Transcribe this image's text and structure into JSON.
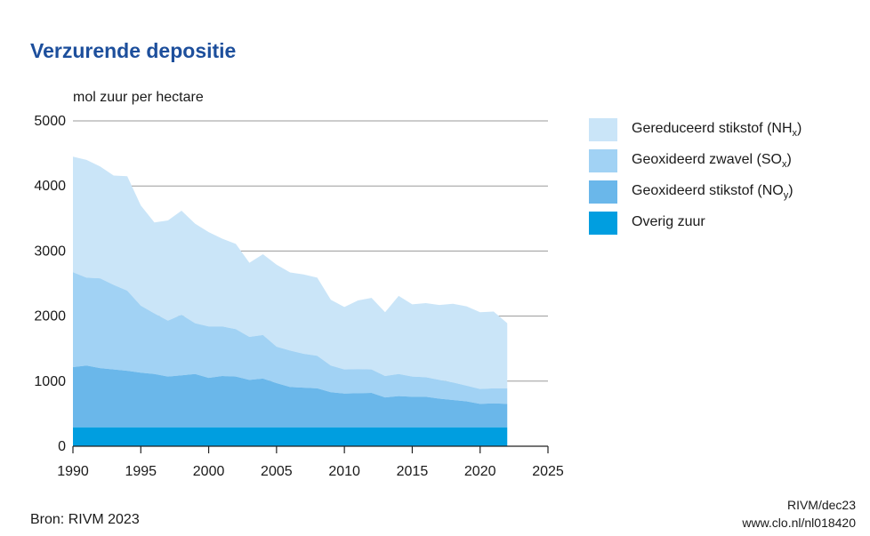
{
  "title": "Verzurende depositie",
  "source": "Bron: RIVM 2023",
  "credit_line1": "RIVM/dec23",
  "credit_line2": "www.clo.nl/nl018420",
  "chart_data": {
    "type": "area",
    "stacked": true,
    "title": "Verzurende depositie",
    "ylabel": "mol zuur per hectare",
    "xlabel": "",
    "xlim": [
      1990,
      2025
    ],
    "ylim": [
      0,
      5000
    ],
    "xticks": [
      1990,
      1995,
      2000,
      2005,
      2010,
      2015,
      2020,
      2025
    ],
    "yticks": [
      0,
      1000,
      2000,
      3000,
      4000,
      5000
    ],
    "grid": true,
    "legend_position": "right",
    "x": [
      1990,
      1991,
      1992,
      1993,
      1994,
      1995,
      1996,
      1997,
      1998,
      1999,
      2000,
      2001,
      2002,
      2003,
      2004,
      2005,
      2006,
      2007,
      2008,
      2009,
      2010,
      2011,
      2012,
      2013,
      2014,
      2015,
      2016,
      2017,
      2018,
      2019,
      2020,
      2021,
      2022
    ],
    "series": [
      {
        "name": "Overig zuur",
        "legend_label": "Overig zuur",
        "color": "#009ee0",
        "values": [
          290,
          290,
          290,
          290,
          290,
          290,
          290,
          290,
          290,
          290,
          290,
          290,
          290,
          290,
          290,
          290,
          290,
          290,
          290,
          290,
          290,
          290,
          290,
          290,
          290,
          290,
          290,
          290,
          290,
          290,
          290,
          290,
          290
        ]
      },
      {
        "name": "Geoxideerd stikstof (NOy)",
        "legend_label": "Geoxideerd stikstof (NO",
        "legend_sub": "y",
        "legend_after": ")",
        "color": "#6ab7ea",
        "values": [
          925,
          950,
          910,
          890,
          870,
          840,
          820,
          780,
          800,
          820,
          760,
          790,
          780,
          730,
          750,
          680,
          620,
          610,
          600,
          540,
          520,
          525,
          530,
          460,
          480,
          470,
          470,
          440,
          420,
          400,
          360,
          370,
          360
        ]
      },
      {
        "name": "Geoxideerd zwavel (SOx)",
        "legend_label": "Geoxideerd zwavel (SO",
        "legend_sub": "x",
        "legend_after": ")",
        "color": "#a1d2f4",
        "values": [
          1460,
          1350,
          1380,
          1300,
          1230,
          1030,
          930,
          860,
          930,
          780,
          790,
          760,
          730,
          660,
          670,
          560,
          560,
          520,
          500,
          410,
          370,
          370,
          360,
          330,
          340,
          310,
          300,
          290,
          270,
          240,
          230,
          230,
          240
        ]
      },
      {
        "name": "Gereduceerd stikstof (NHx)",
        "legend_label": "Gereduceerd stikstof (NH",
        "legend_sub": "x",
        "legend_after": ")",
        "color": "#cae5f8",
        "values": [
          1775,
          1810,
          1720,
          1680,
          1760,
          1540,
          1400,
          1540,
          1600,
          1530,
          1450,
          1350,
          1310,
          1140,
          1240,
          1260,
          1200,
          1220,
          1200,
          1010,
          960,
          1055,
          1100,
          980,
          1200,
          1110,
          1140,
          1150,
          1210,
          1220,
          1180,
          1180,
          1000
        ]
      }
    ]
  }
}
